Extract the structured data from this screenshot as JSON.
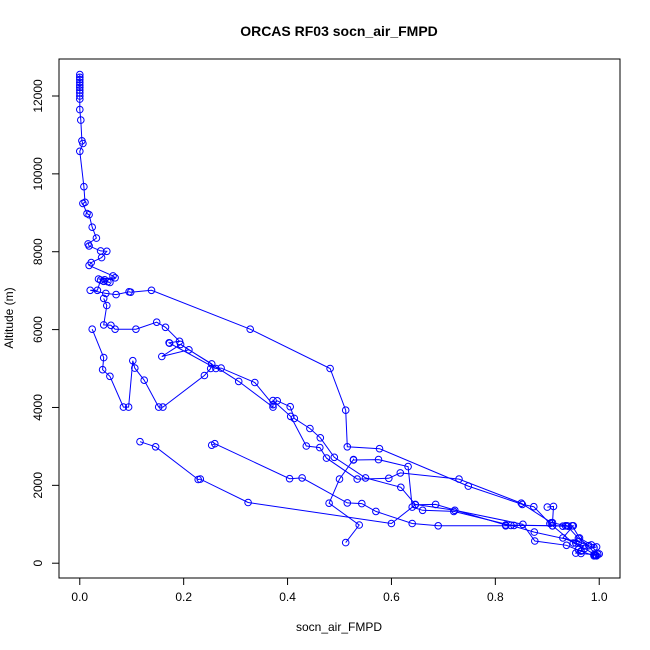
{
  "chart_data": {
    "type": "line",
    "title": "ORCAS RF03 socn_air_FMPD",
    "xlabel": "socn_air_FMPD",
    "ylabel": "Altitude (m)",
    "xlim": [
      -0.04,
      1.04
    ],
    "ylim": [
      -380,
      12950
    ],
    "x_ticks": [
      0,
      0.2,
      0.4,
      0.6,
      0.8,
      1.0
    ],
    "x_tick_labels": [
      "0.0",
      "0.2",
      "0.4",
      "0.6",
      "0.8",
      "1.0"
    ],
    "y_ticks": [
      0,
      2000,
      4000,
      6000,
      8000,
      10000,
      12000
    ],
    "y_tick_labels": [
      "0",
      "2000",
      "4000",
      "6000",
      "8000",
      "10000",
      "12000"
    ],
    "grid": false,
    "legend": "none",
    "marker": "open-circle",
    "color": "#0000ff",
    "series": [
      {
        "values": [
          [
            0.0,
            12550
          ],
          [
            0.0,
            12480
          ],
          [
            0.0,
            12420
          ],
          [
            0.0,
            12350
          ],
          [
            0.0,
            12280
          ],
          [
            0.0,
            12220
          ],
          [
            0.0,
            12150
          ],
          [
            0.0,
            12080
          ],
          [
            0.0,
            12000
          ],
          [
            0.0,
            11920
          ],
          [
            0.0,
            11650
          ],
          [
            0.002,
            11380
          ],
          [
            0.004,
            10850
          ],
          [
            0.006,
            10780
          ],
          [
            0.0,
            10580
          ],
          [
            0.008,
            9670
          ],
          [
            0.01,
            9270
          ],
          [
            0.006,
            9240
          ],
          [
            0.014,
            8980
          ],
          [
            0.018,
            8950
          ],
          [
            0.024,
            8630
          ],
          [
            0.032,
            8350
          ],
          [
            0.016,
            8200
          ],
          [
            0.018,
            8150
          ],
          [
            0.04,
            8020
          ],
          [
            0.052,
            8010
          ],
          [
            0.042,
            7850
          ],
          [
            0.022,
            7720
          ],
          [
            0.018,
            7650
          ],
          [
            0.064,
            7380
          ],
          [
            0.068,
            7330
          ],
          [
            0.036,
            7300
          ],
          [
            0.048,
            7280
          ],
          [
            0.054,
            7230
          ],
          [
            0.058,
            7210
          ],
          [
            0.046,
            7240
          ],
          [
            0.04,
            7270
          ],
          [
            0.034,
            7010
          ],
          [
            0.02,
            7010
          ],
          [
            0.05,
            6930
          ],
          [
            0.07,
            6900
          ],
          [
            0.095,
            6970
          ],
          [
            0.098,
            6960
          ],
          [
            0.138,
            7010
          ],
          [
            0.328,
            6010
          ],
          [
            0.482,
            5000
          ],
          [
            0.512,
            3930
          ],
          [
            0.515,
            2990
          ],
          [
            0.577,
            2940
          ],
          [
            0.748,
            1980
          ],
          [
            0.852,
            1510
          ],
          [
            0.874,
            1450
          ],
          [
            0.905,
            1020
          ],
          [
            0.95,
            520
          ],
          [
            0.972,
            380
          ],
          [
            0.995,
            190
          ]
        ]
      },
      {
        "values": [
          [
            0.046,
            6800
          ],
          [
            0.052,
            6620
          ],
          [
            0.046,
            6120
          ],
          [
            0.06,
            6110
          ],
          [
            0.068,
            6010
          ],
          [
            0.108,
            6010
          ],
          [
            0.148,
            6190
          ],
          [
            0.165,
            6060
          ],
          [
            0.192,
            5700
          ],
          [
            0.172,
            5660
          ],
          [
            0.173,
            5650
          ],
          [
            0.262,
            5000
          ],
          [
            0.272,
            5010
          ],
          [
            0.337,
            4640
          ],
          [
            0.372,
            4070
          ],
          [
            0.38,
            4170
          ],
          [
            0.405,
            4020
          ],
          [
            0.413,
            3720
          ],
          [
            0.443,
            3460
          ],
          [
            0.463,
            3220
          ],
          [
            0.49,
            2720
          ],
          [
            0.55,
            2190
          ],
          [
            0.618,
            1950
          ],
          [
            0.646,
            1510
          ],
          [
            0.722,
            1360
          ],
          [
            0.853,
            1000
          ],
          [
            0.876,
            570
          ],
          [
            0.937,
            460
          ],
          [
            0.965,
            310
          ],
          [
            0.99,
            190
          ]
        ]
      },
      {
        "values": [
          [
            0.024,
            6010
          ],
          [
            0.046,
            5280
          ],
          [
            0.044,
            4970
          ],
          [
            0.058,
            4800
          ],
          [
            0.084,
            4010
          ],
          [
            0.094,
            4010
          ],
          [
            0.102,
            5200
          ],
          [
            0.106,
            5010
          ],
          [
            0.124,
            4700
          ],
          [
            0.152,
            4010
          ],
          [
            0.16,
            4010
          ],
          [
            0.24,
            4820
          ],
          [
            0.252,
            5000
          ],
          [
            0.254,
            5120
          ],
          [
            0.21,
            5480
          ],
          [
            0.158,
            5310
          ],
          [
            0.194,
            5620
          ],
          [
            0.306,
            4670
          ],
          [
            0.372,
            4010
          ],
          [
            0.372,
            4180
          ],
          [
            0.406,
            3770
          ],
          [
            0.436,
            3010
          ],
          [
            0.462,
            2970
          ],
          [
            0.475,
            2700
          ],
          [
            0.534,
            2160
          ],
          [
            0.595,
            2180
          ],
          [
            0.617,
            2320
          ],
          [
            0.73,
            2160
          ],
          [
            0.85,
            1540
          ],
          [
            0.908,
            1040
          ]
        ]
      },
      {
        "values": [
          [
            0.116,
            3120
          ],
          [
            0.146,
            2990
          ],
          [
            0.228,
            2150
          ],
          [
            0.232,
            2160
          ],
          [
            0.324,
            1560
          ],
          [
            0.6,
            1020
          ],
          [
            0.646,
            1500
          ],
          [
            0.685,
            1510
          ],
          [
            0.82,
            980
          ],
          [
            0.91,
            960
          ],
          [
            0.93,
            950
          ],
          [
            0.938,
            960
          ],
          [
            0.96,
            640
          ],
          [
            0.98,
            450
          ]
        ]
      },
      {
        "values": [
          [
            0.254,
            3030
          ],
          [
            0.26,
            3070
          ],
          [
            0.404,
            2170
          ],
          [
            0.428,
            2190
          ],
          [
            0.515,
            1550
          ],
          [
            0.543,
            1530
          ],
          [
            0.57,
            1330
          ],
          [
            0.64,
            1020
          ],
          [
            0.69,
            960
          ],
          [
            0.82,
            960
          ],
          [
            0.836,
            970
          ],
          [
            0.91,
            960
          ],
          [
            0.935,
            960
          ],
          [
            0.948,
            960
          ],
          [
            0.962,
            650
          ],
          [
            0.985,
            470
          ]
        ]
      },
      {
        "values": [
          [
            0.512,
            530
          ],
          [
            0.538,
            980
          ],
          [
            0.48,
            1540
          ],
          [
            0.5,
            2160
          ],
          [
            0.527,
            2660
          ],
          [
            0.527,
            2650
          ],
          [
            0.575,
            2660
          ],
          [
            0.632,
            2480
          ],
          [
            0.64,
            1440
          ],
          [
            0.66,
            1360
          ],
          [
            0.72,
            1330
          ],
          [
            0.83,
            970
          ],
          [
            0.875,
            800
          ],
          [
            0.96,
            550
          ],
          [
            0.99,
            400
          ],
          [
            0.995,
            420
          ]
        ]
      },
      {
        "values": [
          [
            0.9,
            1440
          ],
          [
            0.912,
            1460
          ],
          [
            0.91,
            1040
          ],
          [
            0.94,
            950
          ],
          [
            0.95,
            960
          ],
          [
            0.93,
            650
          ],
          [
            0.955,
            520
          ],
          [
            0.97,
            440
          ],
          [
            0.96,
            350
          ],
          [
            0.955,
            260
          ],
          [
            0.965,
            250
          ],
          [
            0.99,
            220
          ],
          [
            0.997,
            230
          ],
          [
            1.0,
            240
          ],
          [
            0.992,
            210
          ],
          [
            0.993,
            195
          ]
        ]
      }
    ]
  }
}
